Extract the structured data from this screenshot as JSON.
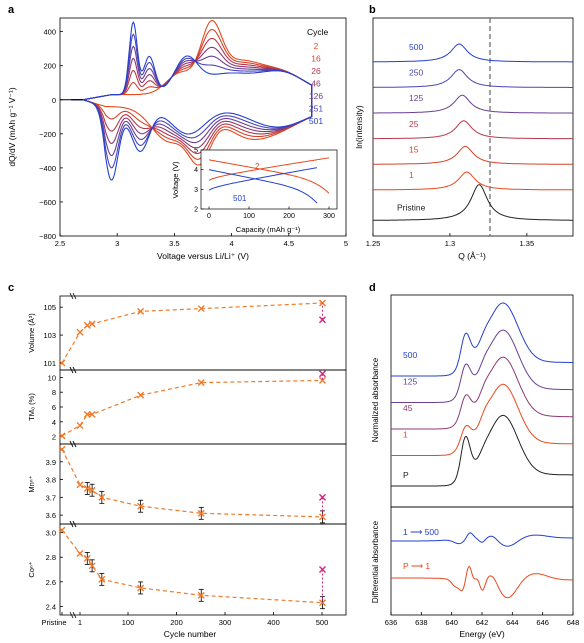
{
  "panels": {
    "a": {
      "letter": "a",
      "xlabel": "Voltage versus Li/Li⁺ (V)",
      "ylabel": "dQ/dV (mAh g⁻¹ V⁻¹)",
      "legend_title": "Cycle",
      "xticks": [
        "2.5",
        "3",
        "3.5",
        "4",
        "4.5",
        "5"
      ],
      "yticks": [
        "400",
        "200",
        "0",
        "−200",
        "−400",
        "−600",
        "−800"
      ],
      "inset": {
        "xlabel": "Capacity (mAh g⁻¹)",
        "ylabel": "Voltage (V)",
        "xticks": [
          "0",
          "100",
          "200",
          "300"
        ],
        "yticks": [
          "2",
          "3",
          "4",
          "5"
        ],
        "label_a": "2",
        "label_b": "501"
      }
    },
    "b": {
      "letter": "b",
      "xlabel": "Q (Å⁻¹)",
      "ylabel": "ln(intensity)",
      "xticks": [
        "1.25",
        "1.3",
        "1.35"
      ]
    },
    "c": {
      "letter": "c",
      "xlabel": "Cycle number",
      "xticks": [
        "Pristine",
        "1",
        "100",
        "200",
        "300",
        "400",
        "500"
      ],
      "sub": [
        {
          "ylabel": "Volume (Å³)",
          "yticks": [
            "101",
            "103",
            "105"
          ]
        },
        {
          "ylabel": "TM₀ (%)",
          "yticks": [
            "2",
            "4",
            "6",
            "8",
            "10"
          ]
        },
        {
          "ylabel": "Mnⁿ⁺",
          "yticks": [
            "3.6",
            "3.7",
            "3.8",
            "3.9"
          ]
        },
        {
          "ylabel": "Coⁿ⁺",
          "yticks": [
            "2.4",
            "2.6",
            "2.8",
            "3.0"
          ]
        }
      ]
    },
    "d": {
      "letter": "d",
      "xlabel": "Energy (eV)",
      "ylabel_top": "Normalized absorbance",
      "ylabel_bottom": "Differential absorbance",
      "xticks": [
        "636",
        "638",
        "640",
        "642",
        "644",
        "646",
        "648"
      ],
      "diff_a": "1 ⟶ 500",
      "diff_b": "P ⟶ 1"
    }
  },
  "chart_data": [
    {
      "panel": "a",
      "type": "line",
      "xlabel": "Voltage versus Li/Li⁺ (V)",
      "ylabel": "dQ/dV (mAh g⁻¹ V⁻¹)",
      "xlim": [
        2.5,
        5.0
      ],
      "ylim": [
        -800,
        480
      ],
      "legend": "top-right",
      "series": [
        {
          "name": "2",
          "color": "#e8491d"
        },
        {
          "name": "16",
          "color": "#d4442c"
        },
        {
          "name": "26",
          "color": "#b7374a"
        },
        {
          "name": "46",
          "color": "#8c3a74"
        },
        {
          "name": "126",
          "color": "#6a3f94"
        },
        {
          "name": "251",
          "color": "#4a45b8"
        },
        {
          "name": "501",
          "color": "#2340cf"
        }
      ]
    },
    {
      "panel": "a-inset",
      "type": "line",
      "xlabel": "Capacity (mAh g⁻¹)",
      "ylabel": "Voltage (V)",
      "xlim": [
        -20,
        320
      ],
      "ylim": [
        2,
        5
      ],
      "series": [
        {
          "name": "2",
          "color": "#e8491d"
        },
        {
          "name": "501",
          "color": "#2340cf"
        }
      ]
    },
    {
      "panel": "b",
      "type": "line",
      "xlabel": "Q (Å⁻¹)",
      "ylabel": "ln(intensity)",
      "xlim": [
        1.25,
        1.38
      ],
      "reference_line": 1.32,
      "series": [
        {
          "name": "500",
          "peak": 1.306,
          "color": "#2340cf"
        },
        {
          "name": "250",
          "peak": 1.306,
          "color": "#4a45b8"
        },
        {
          "name": "125",
          "peak": 1.308,
          "color": "#6a3f94"
        },
        {
          "name": "25",
          "peak": 1.309,
          "color": "#b7374a"
        },
        {
          "name": "15",
          "peak": 1.31,
          "color": "#d4442c"
        },
        {
          "name": "1",
          "peak": 1.311,
          "color": "#e8491d"
        },
        {
          "name": "Pristine",
          "peak": 1.319,
          "color": "#222222"
        }
      ]
    },
    {
      "panel": "c",
      "type": "scatter",
      "xlabel": "Cycle number",
      "x": [
        0,
        1,
        16,
        26,
        46,
        126,
        251,
        501
      ],
      "xticks": [
        "Pristine",
        "1",
        "100",
        "200",
        "300",
        "400",
        "500"
      ],
      "series": [
        {
          "name": "Volume (Å³)",
          "ylim": [
            100.5,
            105.8
          ],
          "values": [
            101.0,
            103.2,
            103.7,
            103.8,
            null,
            104.7,
            104.9,
            105.3
          ],
          "extra": {
            "x": 501,
            "value": 104.1
          }
        },
        {
          "name": "TM₀ (%)",
          "ylim": [
            1,
            11
          ],
          "values": [
            2.1,
            3.5,
            5.0,
            5.0,
            null,
            7.6,
            9.3,
            9.6
          ],
          "extra": {
            "x": 501,
            "value": 10.5
          }
        },
        {
          "name": "Mnⁿ⁺",
          "ylim": [
            3.55,
            4.0
          ],
          "values": [
            3.97,
            3.77,
            3.75,
            3.74,
            3.7,
            3.65,
            3.61,
            3.59
          ],
          "extra": {
            "x": 501,
            "value": 3.7
          }
        },
        {
          "name": "Coⁿ⁺",
          "ylim": [
            2.33,
            3.07
          ],
          "values": [
            3.02,
            2.83,
            2.79,
            2.73,
            2.62,
            2.55,
            2.49,
            2.43
          ],
          "extra": {
            "x": 501,
            "value": 2.7
          }
        }
      ]
    },
    {
      "panel": "d",
      "type": "line",
      "xlabel": "Energy (eV)",
      "xlim": [
        636,
        648
      ],
      "series": [
        {
          "name": "500",
          "color": "#2340cf"
        },
        {
          "name": "125",
          "color": "#6a3f94"
        },
        {
          "name": "45",
          "color": "#8c3a74"
        },
        {
          "name": "1",
          "color": "#e8491d"
        },
        {
          "name": "P",
          "color": "#222222"
        },
        {
          "name": "1 → 500",
          "color": "#2340cf"
        },
        {
          "name": "P → 1",
          "color": "#e8491d"
        }
      ]
    }
  ]
}
